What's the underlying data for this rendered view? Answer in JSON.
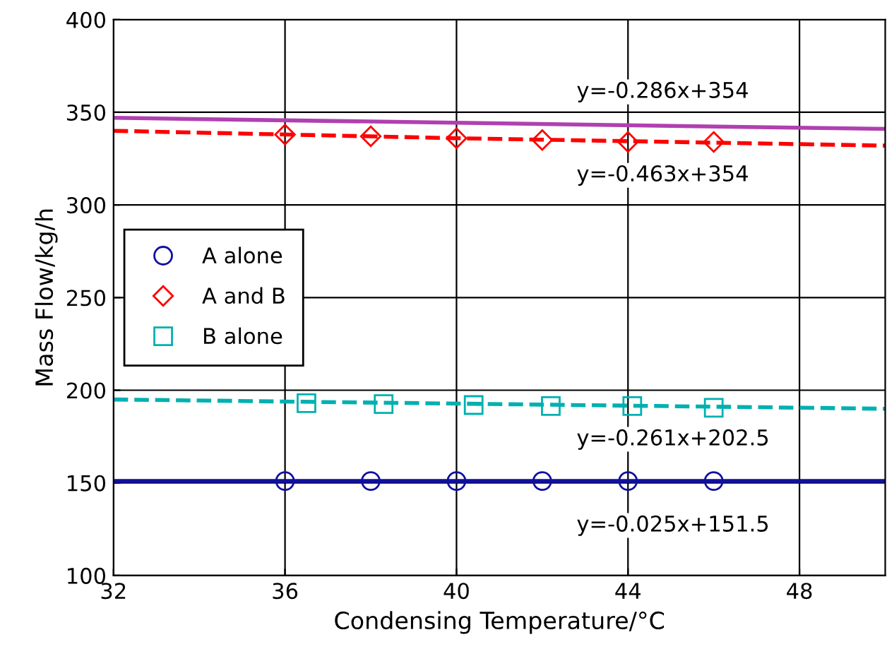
{
  "chart_data": {
    "type": "line",
    "xlabel": "Condensing Temperature/°C",
    "ylabel": "Mass Flow/kg/h",
    "xlim": [
      32,
      50
    ],
    "xticks": [
      32,
      36,
      40,
      44,
      48
    ],
    "ylim": [
      100,
      400
    ],
    "yticks": [
      100,
      150,
      200,
      250,
      300,
      350,
      400
    ],
    "grid": true,
    "legend": "left",
    "series": [
      {
        "type": "line",
        "color": "#b040b0",
        "line_style": "solid",
        "x": [
          32,
          50
        ],
        "values": [
          347,
          341
        ]
      },
      {
        "type": "line",
        "color": "#ff0000",
        "line_style": "dashed",
        "x": [
          32,
          40,
          50
        ],
        "values": [
          340,
          336,
          332
        ]
      },
      {
        "type": "line",
        "color": "#00b0b0",
        "line_style": "dashed",
        "x": [
          32,
          50
        ],
        "values": [
          195,
          190
        ]
      },
      {
        "type": "line",
        "color": "#1010a0",
        "line_style": "solid",
        "x": [
          32,
          50
        ],
        "values": [
          151,
          151
        ]
      },
      {
        "type": "scatter",
        "name": "A alone",
        "color": "#1010a0",
        "marker": "circle",
        "x": [
          36,
          38,
          40,
          42,
          44,
          46
        ],
        "values": [
          151,
          151,
          151,
          151,
          151,
          151
        ]
      },
      {
        "type": "scatter",
        "name": "A and B",
        "color": "#ff0000",
        "marker": "diamond",
        "x": [
          36,
          38,
          40,
          42,
          44,
          46
        ],
        "values": [
          338,
          337,
          336,
          335,
          334,
          334
        ]
      },
      {
        "type": "scatter",
        "name": "B alone",
        "color": "#00b0b0",
        "marker": "square",
        "x": [
          36.5,
          38.3,
          40.4,
          42.2,
          44.1,
          46
        ],
        "values": [
          193,
          192.5,
          192,
          191.5,
          191.5,
          190.5
        ]
      }
    ],
    "annotations": [
      "y=-0.286x+354",
      "y=-0.463x+354",
      "y=-0.261x+202.5",
      "y=-0.025x+151.5"
    ]
  }
}
